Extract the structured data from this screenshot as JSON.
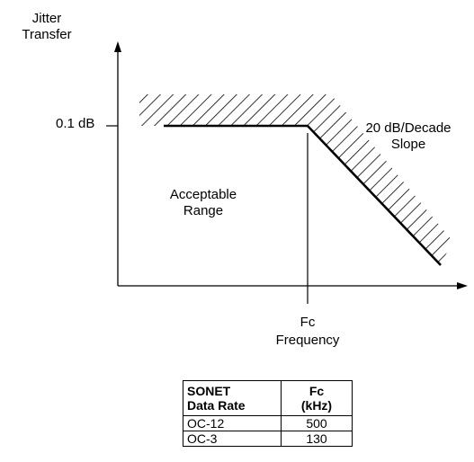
{
  "diagram": {
    "y_axis_label_line1": "Jitter",
    "y_axis_label_line2": "Transfer",
    "level_label": "0.1 dB",
    "slope_label_line1": "20 dB/Decade",
    "slope_label_line2": "Slope",
    "region_label_line1": "Acceptable",
    "region_label_line2": "Range",
    "corner_label": "Fc",
    "x_axis_label": "Frequency"
  },
  "table": {
    "headers": [
      {
        "line1": "SONET",
        "line2": "Data Rate"
      },
      {
        "line1": "Fc",
        "line2": "(kHz)"
      }
    ],
    "rows": [
      [
        "OC-12",
        "500"
      ],
      [
        "OC-3",
        "130"
      ]
    ]
  },
  "colors": {
    "stroke": "#000000",
    "background": "#ffffff"
  }
}
